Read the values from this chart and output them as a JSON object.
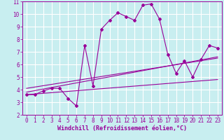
{
  "bg_color": "#c8eef0",
  "grid_color": "#ffffff",
  "line_color": "#990099",
  "xlabel": "Windchill (Refroidissement éolien,°C)",
  "xlabel_fontsize": 6.0,
  "tick_fontsize": 5.5,
  "xlim": [
    -0.5,
    23.5
  ],
  "ylim": [
    2,
    11
  ],
  "xticks": [
    0,
    1,
    2,
    3,
    4,
    5,
    6,
    7,
    8,
    9,
    10,
    11,
    12,
    13,
    14,
    15,
    16,
    17,
    18,
    19,
    20,
    21,
    22,
    23
  ],
  "yticks": [
    2,
    3,
    4,
    5,
    6,
    7,
    8,
    9,
    10,
    11
  ],
  "curve_x": [
    0,
    1,
    2,
    3,
    4,
    5,
    6,
    7,
    8,
    9,
    10,
    11,
    12,
    13,
    14,
    15,
    16,
    17,
    18,
    19,
    20,
    21,
    22,
    23
  ],
  "curve_y": [
    3.6,
    3.6,
    3.9,
    4.1,
    4.1,
    3.3,
    2.7,
    7.5,
    4.3,
    8.8,
    9.5,
    10.1,
    9.8,
    9.5,
    10.7,
    10.8,
    9.6,
    6.8,
    5.3,
    6.3,
    5.0,
    6.4,
    7.5,
    7.3
  ],
  "line1_x": [
    0,
    23
  ],
  "line1_y": [
    3.6,
    4.8
  ],
  "line2_x": [
    0,
    23
  ],
  "line2_y": [
    3.8,
    6.6
  ],
  "line3_x": [
    0,
    23
  ],
  "line3_y": [
    4.1,
    6.5
  ]
}
